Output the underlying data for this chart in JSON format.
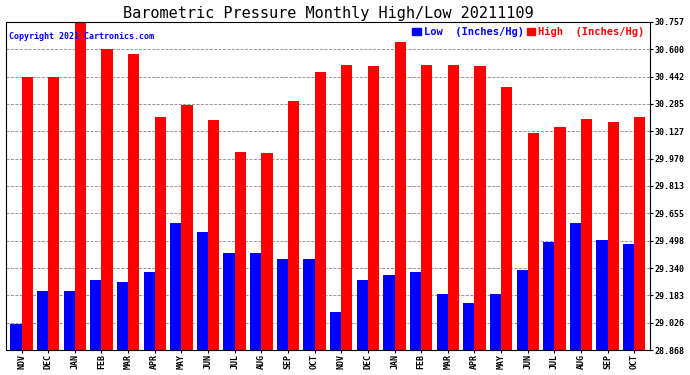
{
  "title": "Barometric Pressure Monthly High/Low 20211109",
  "copyright": "Copyright 2021 Cartronics.com",
  "categories": [
    "NOV",
    "DEC",
    "JAN",
    "FEB",
    "MAR",
    "APR",
    "MAY",
    "JUN",
    "JUL",
    "AUG",
    "SEP",
    "OCT",
    "NOV",
    "DEC",
    "JAN",
    "FEB",
    "MAR",
    "APR",
    "MAY",
    "JUN",
    "JUL",
    "AUG",
    "SEP",
    "OCT"
  ],
  "high_values": [
    30.44,
    30.44,
    30.76,
    30.6,
    30.57,
    30.21,
    30.28,
    30.19,
    30.01,
    30.0,
    30.3,
    30.47,
    30.51,
    30.5,
    30.64,
    30.51,
    30.51,
    30.5,
    30.38,
    30.12,
    30.15,
    30.2,
    30.18,
    30.21
  ],
  "low_values": [
    29.02,
    29.21,
    29.21,
    29.27,
    29.26,
    29.32,
    29.6,
    29.55,
    29.43,
    29.43,
    29.39,
    29.39,
    29.09,
    29.27,
    29.3,
    29.32,
    29.19,
    29.14,
    29.19,
    29.33,
    29.49,
    29.6,
    29.5,
    29.48
  ],
  "high_color": "#ff0000",
  "low_color": "#0000ff",
  "yticks": [
    28.868,
    29.026,
    29.183,
    29.34,
    29.498,
    29.655,
    29.813,
    29.97,
    30.127,
    30.285,
    30.442,
    30.6,
    30.757
  ],
  "ymin": 28.868,
  "ymax": 30.757,
  "bg_color": "#ffffff",
  "grid_color": "#888888",
  "bar_width": 0.42,
  "title_fontsize": 11,
  "legend_fontsize": 7.5,
  "tick_fontsize": 6,
  "copyright_fontsize": 6
}
